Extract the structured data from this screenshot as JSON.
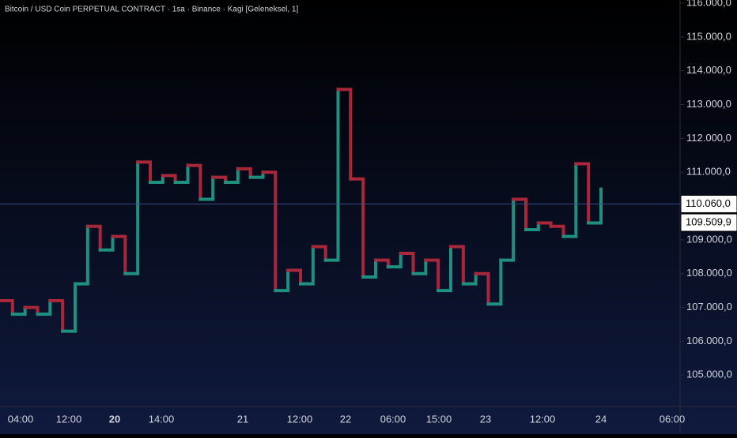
{
  "chart_data": {
    "type": "kagi",
    "title": "Bitcoin / USD Coin PERPETUAL CONTRACT · 1sa · Binance · Kagi [Geleneksel, 1]",
    "values": [
      107200,
      106800,
      107000,
      106800,
      107200,
      106300,
      107700,
      109400,
      108700,
      109100,
      108000,
      111300,
      110700,
      110900,
      110700,
      111200,
      110200,
      110850,
      110700,
      111100,
      110850,
      111000,
      107500,
      108100,
      107700,
      108800,
      108400,
      113450,
      110800,
      107900,
      108400,
      108200,
      108600,
      108000,
      108400,
      107500,
      108800,
      107700,
      108000,
      107100,
      108400,
      110200,
      109300,
      109500,
      109400,
      109100,
      111250,
      109500,
      110500
    ],
    "up_color": "#1f8f80",
    "down_color": "#a8283a",
    "ylim": [
      104500,
      116100
    ],
    "yticks": [
      {
        "value": 105000,
        "label": "105.000,0"
      },
      {
        "value": 106000,
        "label": "106.000,0"
      },
      {
        "value": 107000,
        "label": "107.000,0"
      },
      {
        "value": 108000,
        "label": "108.000,0"
      },
      {
        "value": 109000,
        "label": "109.000,0"
      },
      {
        "value": 110000,
        "label": "110.000,0"
      },
      {
        "value": 111000,
        "label": "111.000,0"
      },
      {
        "value": 112000,
        "label": "112.000,0"
      },
      {
        "value": 113000,
        "label": "113.000,0"
      },
      {
        "value": 114000,
        "label": "114.000,0"
      },
      {
        "value": 115000,
        "label": "115.000,0"
      },
      {
        "value": 116000,
        "label": "116.000,0"
      }
    ],
    "xticks": [
      "04:00",
      "12:00",
      "20",
      "14:00",
      "21",
      "12:00",
      "22",
      "06:00",
      "15:00",
      "23",
      "12:00",
      "24",
      "06:00"
    ],
    "price_labels": [
      {
        "value": 110060,
        "label": "110.060,0"
      },
      {
        "value": 109509.9,
        "label": "109.509,9"
      }
    ]
  }
}
